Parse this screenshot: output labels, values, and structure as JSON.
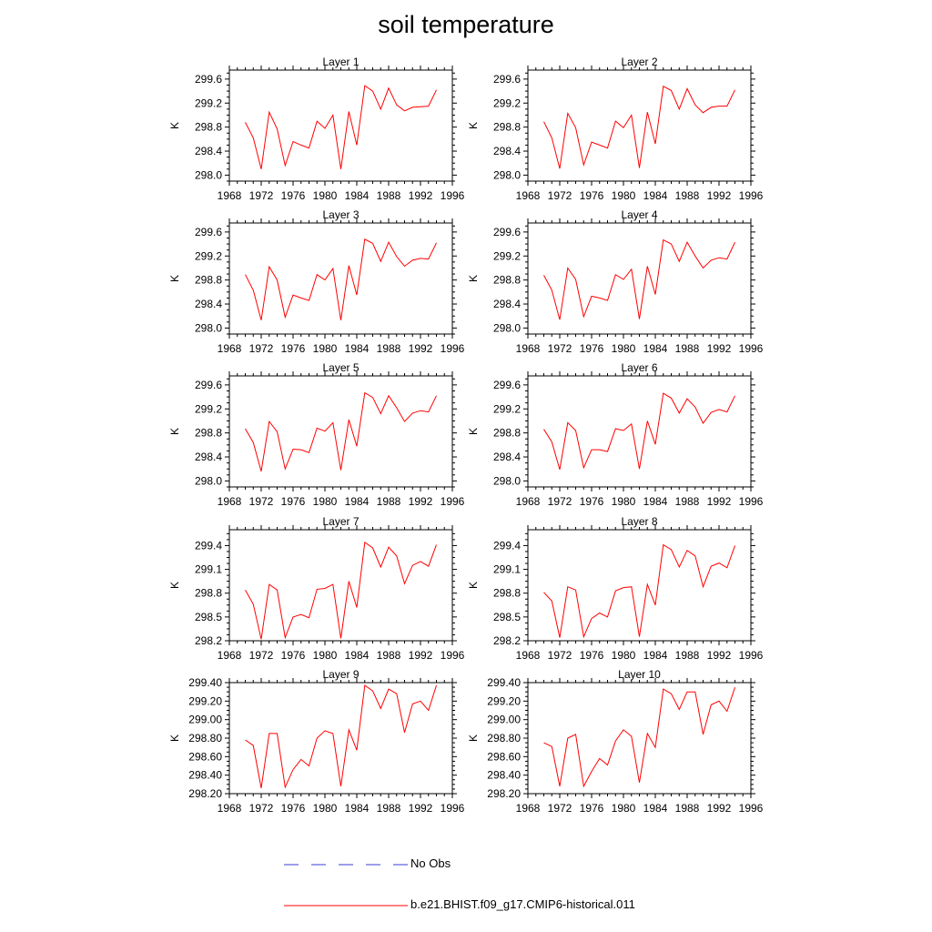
{
  "figure": {
    "title": "soil temperature"
  },
  "legend": {
    "items": [
      {
        "label": "No Obs",
        "color": "#3b3bd6",
        "style": "dashed"
      },
      {
        "label": "b.e21.BHIST.f09_g17.CMIP6-historical.011",
        "color": "#ff0000",
        "style": "solid"
      }
    ]
  },
  "chart_data": [
    {
      "type": "line",
      "title": "Layer 1",
      "ylabel": "K",
      "xlim": [
        1968,
        1996
      ],
      "xticks": [
        1968,
        1972,
        1976,
        1980,
        1984,
        1988,
        1992,
        1996
      ],
      "ylim": [
        297.9,
        299.75
      ],
      "yticks": [
        298.0,
        298.4,
        298.8,
        299.2,
        299.6
      ],
      "ytick_decimals": 1,
      "x": [
        1970,
        1971,
        1972,
        1973,
        1974,
        1975,
        1976,
        1977,
        1978,
        1979,
        1980,
        1981,
        1982,
        1983,
        1984,
        1985,
        1986,
        1987,
        1988,
        1989,
        1990,
        1991,
        1992,
        1993,
        1994
      ],
      "series": [
        {
          "name": "b.e21.BHIST.f09_g17.CMIP6-historical.011",
          "color": "#ff0000",
          "values": [
            298.88,
            298.62,
            298.1,
            299.05,
            298.77,
            298.16,
            298.56,
            298.5,
            298.45,
            298.9,
            298.78,
            299.0,
            298.1,
            299.06,
            298.5,
            299.49,
            299.4,
            299.1,
            299.45,
            299.17,
            299.07,
            299.13,
            299.14,
            299.15,
            299.42
          ]
        }
      ]
    },
    {
      "type": "line",
      "title": "Layer 2",
      "ylabel": "K",
      "xlim": [
        1968,
        1996
      ],
      "xticks": [
        1968,
        1972,
        1976,
        1980,
        1984,
        1988,
        1992,
        1996
      ],
      "ylim": [
        297.9,
        299.75
      ],
      "yticks": [
        298.0,
        298.4,
        298.8,
        299.2,
        299.6
      ],
      "ytick_decimals": 1,
      "x": [
        1970,
        1971,
        1972,
        1973,
        1974,
        1975,
        1976,
        1977,
        1978,
        1979,
        1980,
        1981,
        1982,
        1983,
        1984,
        1985,
        1986,
        1987,
        1988,
        1989,
        1990,
        1991,
        1992,
        1993,
        1994
      ],
      "series": [
        {
          "name": "b.e21.BHIST.f09_g17.CMIP6-historical.011",
          "color": "#ff0000",
          "values": [
            298.89,
            298.62,
            298.11,
            299.03,
            298.79,
            298.17,
            298.55,
            298.5,
            298.45,
            298.9,
            298.79,
            299.0,
            298.12,
            299.05,
            298.52,
            299.48,
            299.41,
            299.1,
            299.44,
            299.17,
            299.04,
            299.13,
            299.15,
            299.15,
            299.42
          ]
        }
      ]
    },
    {
      "type": "line",
      "title": "Layer 3",
      "ylabel": "K",
      "xlim": [
        1968,
        1996
      ],
      "xticks": [
        1968,
        1972,
        1976,
        1980,
        1984,
        1988,
        1992,
        1996
      ],
      "ylim": [
        297.9,
        299.75
      ],
      "yticks": [
        298.0,
        298.4,
        298.8,
        299.2,
        299.6
      ],
      "ytick_decimals": 1,
      "x": [
        1970,
        1971,
        1972,
        1973,
        1974,
        1975,
        1976,
        1977,
        1978,
        1979,
        1980,
        1981,
        1982,
        1983,
        1984,
        1985,
        1986,
        1987,
        1988,
        1989,
        1990,
        1991,
        1992,
        1993,
        1994
      ],
      "series": [
        {
          "name": "b.e21.BHIST.f09_g17.CMIP6-historical.011",
          "color": "#ff0000",
          "values": [
            298.89,
            298.63,
            298.13,
            299.02,
            298.8,
            298.18,
            298.55,
            298.5,
            298.46,
            298.89,
            298.8,
            298.99,
            298.13,
            299.04,
            298.55,
            299.48,
            299.41,
            299.11,
            299.43,
            299.19,
            299.03,
            299.13,
            299.16,
            299.15,
            299.42
          ]
        }
      ]
    },
    {
      "type": "line",
      "title": "Layer 4",
      "ylabel": "K",
      "xlim": [
        1968,
        1996
      ],
      "xticks": [
        1968,
        1972,
        1976,
        1980,
        1984,
        1988,
        1992,
        1996
      ],
      "ylim": [
        297.9,
        299.75
      ],
      "yticks": [
        298.0,
        298.4,
        298.8,
        299.2,
        299.6
      ],
      "ytick_decimals": 1,
      "x": [
        1970,
        1971,
        1972,
        1973,
        1974,
        1975,
        1976,
        1977,
        1978,
        1979,
        1980,
        1981,
        1982,
        1983,
        1984,
        1985,
        1986,
        1987,
        1988,
        1989,
        1990,
        1991,
        1992,
        1993,
        1994
      ],
      "series": [
        {
          "name": "b.e21.BHIST.f09_g17.CMIP6-historical.011",
          "color": "#ff0000",
          "values": [
            298.88,
            298.63,
            298.14,
            299.0,
            298.81,
            298.19,
            298.53,
            298.5,
            298.46,
            298.89,
            298.81,
            298.98,
            298.15,
            299.03,
            298.56,
            299.47,
            299.4,
            299.11,
            299.43,
            299.2,
            299.0,
            299.13,
            299.17,
            299.15,
            299.43
          ]
        }
      ]
    },
    {
      "type": "line",
      "title": "Layer 5",
      "ylabel": "K",
      "xlim": [
        1968,
        1996
      ],
      "xticks": [
        1968,
        1972,
        1976,
        1980,
        1984,
        1988,
        1992,
        1996
      ],
      "ylim": [
        297.9,
        299.75
      ],
      "yticks": [
        298.0,
        298.4,
        298.8,
        299.2,
        299.6
      ],
      "ytick_decimals": 1,
      "x": [
        1970,
        1971,
        1972,
        1973,
        1974,
        1975,
        1976,
        1977,
        1978,
        1979,
        1980,
        1981,
        1982,
        1983,
        1984,
        1985,
        1986,
        1987,
        1988,
        1989,
        1990,
        1991,
        1992,
        1993,
        1994
      ],
      "series": [
        {
          "name": "b.e21.BHIST.f09_g17.CMIP6-historical.011",
          "color": "#ff0000",
          "values": [
            298.87,
            298.64,
            298.16,
            298.99,
            298.82,
            298.2,
            298.53,
            298.52,
            298.47,
            298.88,
            298.83,
            298.97,
            298.18,
            299.02,
            298.58,
            299.47,
            299.39,
            299.12,
            299.42,
            299.22,
            298.99,
            299.13,
            299.17,
            299.15,
            299.42
          ]
        }
      ]
    },
    {
      "type": "line",
      "title": "Layer 6",
      "ylabel": "K",
      "xlim": [
        1968,
        1996
      ],
      "xticks": [
        1968,
        1972,
        1976,
        1980,
        1984,
        1988,
        1992,
        1996
      ],
      "ylim": [
        297.9,
        299.75
      ],
      "yticks": [
        298.0,
        298.4,
        298.8,
        299.2,
        299.6
      ],
      "ytick_decimals": 1,
      "x": [
        1970,
        1971,
        1972,
        1973,
        1974,
        1975,
        1976,
        1977,
        1978,
        1979,
        1980,
        1981,
        1982,
        1983,
        1984,
        1985,
        1986,
        1987,
        1988,
        1989,
        1990,
        1991,
        1992,
        1993,
        1994
      ],
      "series": [
        {
          "name": "b.e21.BHIST.f09_g17.CMIP6-historical.011",
          "color": "#ff0000",
          "values": [
            298.86,
            298.65,
            298.19,
            298.97,
            298.84,
            298.22,
            298.52,
            298.52,
            298.49,
            298.87,
            298.84,
            298.95,
            298.2,
            299.0,
            298.61,
            299.46,
            299.38,
            299.13,
            299.37,
            299.23,
            298.96,
            299.14,
            299.19,
            299.15,
            299.42
          ]
        }
      ]
    },
    {
      "type": "line",
      "title": "Layer 7",
      "ylabel": "K",
      "xlim": [
        1968,
        1996
      ],
      "xticks": [
        1968,
        1972,
        1976,
        1980,
        1984,
        1988,
        1992,
        1996
      ],
      "ylim": [
        298.2,
        299.6
      ],
      "yticks": [
        298.2,
        298.5,
        298.8,
        299.1,
        299.4
      ],
      "ytick_decimals": 1,
      "x": [
        1970,
        1971,
        1972,
        1973,
        1974,
        1975,
        1976,
        1977,
        1978,
        1979,
        1980,
        1981,
        1982,
        1983,
        1984,
        1985,
        1986,
        1987,
        1988,
        1989,
        1990,
        1991,
        1992,
        1993,
        1994
      ],
      "series": [
        {
          "name": "b.e21.BHIST.f09_g17.CMIP6-historical.011",
          "color": "#ff0000",
          "values": [
            298.84,
            298.66,
            298.22,
            298.91,
            298.84,
            298.24,
            298.5,
            298.53,
            298.49,
            298.85,
            298.86,
            298.91,
            298.23,
            298.95,
            298.62,
            299.44,
            299.37,
            299.13,
            299.38,
            299.27,
            298.92,
            299.15,
            299.2,
            299.14,
            299.41
          ]
        }
      ]
    },
    {
      "type": "line",
      "title": "Layer 8",
      "ylabel": "K",
      "xlim": [
        1968,
        1996
      ],
      "xticks": [
        1968,
        1972,
        1976,
        1980,
        1984,
        1988,
        1992,
        1996
      ],
      "ylim": [
        298.2,
        299.6
      ],
      "yticks": [
        298.2,
        298.5,
        298.8,
        299.1,
        299.4
      ],
      "ytick_decimals": 1,
      "x": [
        1970,
        1971,
        1972,
        1973,
        1974,
        1975,
        1976,
        1977,
        1978,
        1979,
        1980,
        1981,
        1982,
        1983,
        1984,
        1985,
        1986,
        1987,
        1988,
        1989,
        1990,
        1991,
        1992,
        1993,
        1994
      ],
      "series": [
        {
          "name": "b.e21.BHIST.f09_g17.CMIP6-historical.011",
          "color": "#ff0000",
          "values": [
            298.81,
            298.7,
            298.24,
            298.88,
            298.84,
            298.25,
            298.48,
            298.55,
            298.5,
            298.83,
            298.87,
            298.88,
            298.25,
            298.91,
            298.65,
            299.41,
            299.35,
            299.13,
            299.34,
            299.27,
            298.88,
            299.14,
            299.18,
            299.12,
            299.4
          ]
        }
      ]
    },
    {
      "type": "line",
      "title": "Layer 9",
      "ylabel": "K",
      "xlim": [
        1968,
        1996
      ],
      "xticks": [
        1968,
        1972,
        1976,
        1980,
        1984,
        1988,
        1992,
        1996
      ],
      "ylim": [
        298.2,
        299.4
      ],
      "yticks": [
        298.2,
        298.4,
        298.6,
        298.8,
        299.0,
        299.2,
        299.4
      ],
      "ytick_decimals": 2,
      "x": [
        1970,
        1971,
        1972,
        1973,
        1974,
        1975,
        1976,
        1977,
        1978,
        1979,
        1980,
        1981,
        1982,
        1983,
        1984,
        1985,
        1986,
        1987,
        1988,
        1989,
        1990,
        1991,
        1992,
        1993,
        1994
      ],
      "series": [
        {
          "name": "b.e21.BHIST.f09_g17.CMIP6-historical.011",
          "color": "#ff0000",
          "values": [
            298.78,
            298.72,
            298.26,
            298.85,
            298.85,
            298.27,
            298.46,
            298.57,
            298.5,
            298.8,
            298.88,
            298.85,
            298.28,
            298.89,
            298.67,
            299.37,
            299.31,
            299.12,
            299.33,
            299.28,
            298.86,
            299.17,
            299.2,
            299.1,
            299.37
          ]
        }
      ]
    },
    {
      "type": "line",
      "title": "Layer 10",
      "ylabel": "K",
      "xlim": [
        1968,
        1996
      ],
      "xticks": [
        1968,
        1972,
        1976,
        1980,
        1984,
        1988,
        1992,
        1996
      ],
      "ylim": [
        298.2,
        299.4
      ],
      "yticks": [
        298.2,
        298.4,
        298.6,
        298.8,
        299.0,
        299.2,
        299.4
      ],
      "ytick_decimals": 2,
      "x": [
        1970,
        1971,
        1972,
        1973,
        1974,
        1975,
        1976,
        1977,
        1978,
        1979,
        1980,
        1981,
        1982,
        1983,
        1984,
        1985,
        1986,
        1987,
        1988,
        1989,
        1990,
        1991,
        1992,
        1993,
        1994
      ],
      "series": [
        {
          "name": "b.e21.BHIST.f09_g17.CMIP6-historical.011",
          "color": "#ff0000",
          "values": [
            298.75,
            298.71,
            298.28,
            298.8,
            298.84,
            298.28,
            298.44,
            298.58,
            298.51,
            298.77,
            298.89,
            298.82,
            298.32,
            298.85,
            298.7,
            299.33,
            299.28,
            299.11,
            299.3,
            299.3,
            298.84,
            299.16,
            299.2,
            299.09,
            299.35
          ]
        }
      ]
    }
  ]
}
